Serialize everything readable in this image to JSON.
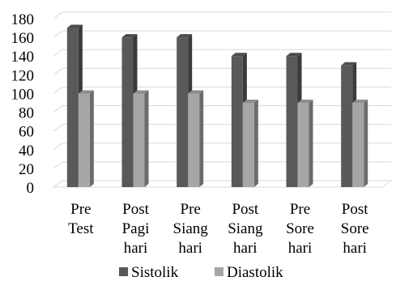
{
  "chart_data": {
    "type": "bar",
    "style": "3d-clustered-column",
    "categories": [
      [
        "Pre",
        "Test"
      ],
      [
        "Post",
        "Pagi",
        "hari"
      ],
      [
        "Pre",
        "Siang",
        "hari"
      ],
      [
        "Post",
        "Siang",
        "hari"
      ],
      [
        "Pre",
        "Sore",
        "hari"
      ],
      [
        "Post",
        "Sore",
        "hari"
      ]
    ],
    "series": [
      {
        "name": "Sistolik",
        "values": [
          170,
          160,
          160,
          140,
          140,
          130
        ],
        "color": "#595959"
      },
      {
        "name": "Diastolik",
        "values": [
          100,
          100,
          100,
          90,
          90,
          90
        ],
        "color": "#a6a6a6"
      }
    ],
    "title": "",
    "xlabel": "",
    "ylabel": "",
    "ylim": [
      0,
      180
    ],
    "yticks": [
      "0",
      "20",
      "40",
      "60",
      "80",
      "100",
      "120",
      "140",
      "160",
      "180"
    ],
    "grid": true,
    "legend_position": "bottom"
  }
}
